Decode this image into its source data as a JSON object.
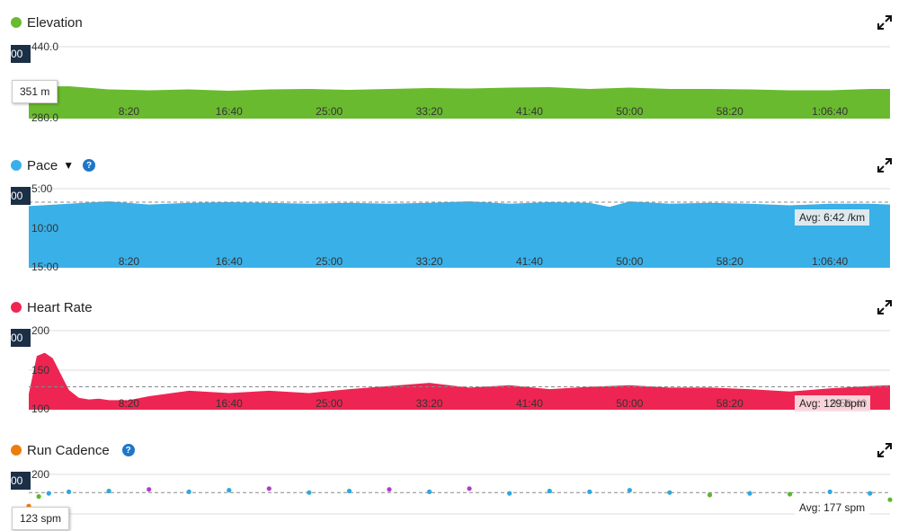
{
  "colors": {
    "elevation": "#6aba30",
    "pace": "#3ab0e8",
    "heart_rate": "#ee2552",
    "cadence": "#ed7d0a",
    "cad_blue": "#2ea8e0",
    "cad_purple": "#b03cc8",
    "cad_green": "#5cb82e",
    "cad_yellow": "#d6ec9e"
  },
  "icons": {
    "expand": "expand-arrows-icon",
    "help": "question-mark-icon",
    "dropdown": "caret-down-icon"
  },
  "x_ticks": [
    "8:20",
    "16:40",
    "25:00",
    "33:20",
    "41:40",
    "50:00",
    "58:20",
    "1:06:40"
  ],
  "panels": {
    "elevation": {
      "title": "Elevation",
      "cursor": "00",
      "tooltip": "351 m"
    },
    "pace": {
      "title": "Pace",
      "cursor": "00",
      "avg": "Avg: 6:42 /km",
      "help": "?"
    },
    "heart_rate": {
      "title": "Heart Rate",
      "cursor": "00",
      "avg": "Avg: 129 bpm",
      "avg_overlap": "9:58:40"
    },
    "cadence": {
      "title": "Run Cadence",
      "cursor": "00",
      "tooltip": "123 spm",
      "avg": "Avg: 177 spm",
      "help": "?"
    }
  },
  "chart_data": [
    {
      "type": "area",
      "title": "Elevation",
      "x_unit": "seconds",
      "x_range": [
        0,
        4300
      ],
      "y_ticks": [
        "440.0",
        "280.0"
      ],
      "ylim": [
        280,
        440
      ],
      "x": [
        0,
        200,
        400,
        600,
        800,
        1000,
        1200,
        1400,
        1600,
        1800,
        2000,
        2200,
        2400,
        2600,
        2800,
        3000,
        3200,
        3400,
        3600,
        3800,
        4000,
        4200,
        4300
      ],
      "values": [
        351,
        352,
        345,
        343,
        345,
        342,
        345,
        346,
        344,
        346,
        348,
        347,
        349,
        350,
        346,
        349,
        346,
        346,
        345,
        343,
        343,
        346,
        346
      ]
    },
    {
      "type": "area",
      "title": "Pace",
      "x_unit": "seconds",
      "x_range": [
        0,
        4300
      ],
      "y_ticks": [
        "5:00",
        "10:00",
        "15:00"
      ],
      "ylim_min_per_km": [
        5,
        15
      ],
      "y_inverted": true,
      "avg_min_per_km": 6.7,
      "x": [
        0,
        200,
        400,
        600,
        800,
        1000,
        1200,
        1400,
        1600,
        1800,
        2000,
        2200,
        2400,
        2600,
        2800,
        2900,
        3000,
        3200,
        3400,
        3600,
        3800,
        4000,
        4200,
        4300
      ],
      "values": [
        7.2,
        6.9,
        6.6,
        7.0,
        6.8,
        6.7,
        6.8,
        6.9,
        6.8,
        6.9,
        6.8,
        6.6,
        6.9,
        6.7,
        6.8,
        7.3,
        6.6,
        6.9,
        6.8,
        6.9,
        7.1,
        6.9,
        6.9,
        7.0
      ]
    },
    {
      "type": "area",
      "title": "Heart Rate",
      "x_unit": "seconds",
      "x_range": [
        0,
        4300
      ],
      "y_ticks": [
        "200",
        "150",
        "100"
      ],
      "ylim": [
        100,
        200
      ],
      "avg": 129,
      "x": [
        0,
        40,
        80,
        120,
        160,
        200,
        250,
        300,
        350,
        400,
        500,
        600,
        800,
        1000,
        1200,
        1400,
        1600,
        1800,
        2000,
        2200,
        2400,
        2600,
        2800,
        3000,
        3200,
        3400,
        3600,
        3800,
        4000,
        4200,
        4300
      ],
      "values": [
        120,
        168,
        172,
        165,
        145,
        125,
        115,
        113,
        114,
        112,
        112,
        117,
        124,
        121,
        124,
        121,
        126,
        130,
        134,
        128,
        131,
        126,
        129,
        131,
        128,
        128,
        126,
        123,
        127,
        130,
        131
      ]
    },
    {
      "type": "scatter",
      "title": "Run Cadence",
      "x_unit": "seconds",
      "x_range": [
        0,
        4300
      ],
      "y_ticks": [
        "200"
      ],
      "ylim": [
        0,
        200
      ],
      "avg": 177,
      "x": [
        0,
        50,
        100,
        200,
        400,
        600,
        800,
        1000,
        1200,
        1400,
        1600,
        1800,
        2000,
        2200,
        2400,
        2600,
        2800,
        3000,
        3200,
        3400,
        3600,
        3800,
        4000,
        4200,
        4300
      ],
      "values": [
        160,
        172,
        176,
        178,
        179,
        181,
        178,
        180,
        182,
        177,
        179,
        181,
        178,
        182,
        176,
        179,
        178,
        180,
        177,
        174,
        176,
        175,
        178,
        176,
        168
      ]
    }
  ]
}
